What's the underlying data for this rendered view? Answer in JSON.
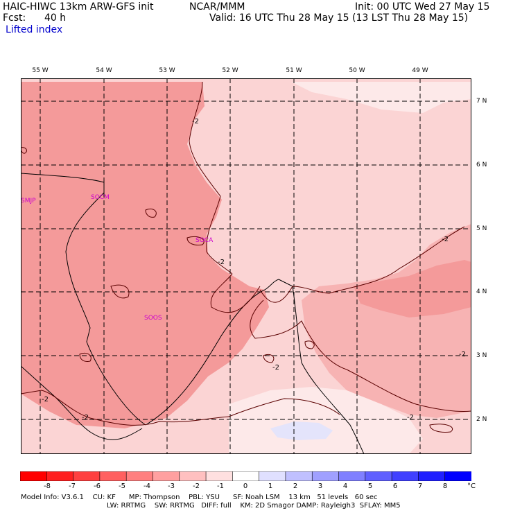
{
  "header": {
    "title": "HAIC-HIWC 13km ARW-GFS init",
    "center": "NCAR/MMM",
    "init": "Init: 00 UTC Wed 27 May 15",
    "fcst_label": "Fcst:",
    "fcst_value": "40 h",
    "valid": "Valid: 16 UTC Thu 28 May 15 (13 LST Thu 28 May 15)",
    "field": "Lifted index"
  },
  "map": {
    "longitudes": [
      "55 W",
      "54 W",
      "53 W",
      "52 W",
      "51 W",
      "50 W",
      "49 W"
    ],
    "latitudes": [
      "7 N",
      "6 N",
      "5 N",
      "4 N",
      "3 N",
      "2 N"
    ],
    "stations": [
      "SMJP",
      "SOCM",
      "SOCA",
      "SOOS"
    ],
    "contour_label": "-2",
    "fill_colors": {
      "deep": "#f49a9a",
      "mid": "#f7b3b3",
      "light": "#fbd4d4",
      "pale": "#fde9e9",
      "blue": "#e4e4fb"
    }
  },
  "colorbar": {
    "labels": [
      "-8",
      "-7",
      "-6",
      "-5",
      "-4",
      "-3",
      "-2",
      "-1",
      "0",
      "1",
      "2",
      "3",
      "4",
      "5",
      "6",
      "7",
      "8"
    ],
    "unit": "°C",
    "colors": [
      "#ff0000",
      "#ff2020",
      "#ff4040",
      "#ff6060",
      "#ff8080",
      "#ffa0a0",
      "#ffc0c0",
      "#ffe0e0",
      "#ffffff",
      "#e0e0ff",
      "#c0c0ff",
      "#a0a0ff",
      "#8080ff",
      "#6060ff",
      "#4040ff",
      "#2020ff",
      "#0000ff"
    ]
  },
  "footer": {
    "line1": "Model Info: V3.6.1    CU: KF      MP: Thompson    PBL: YSU      SF: Noah LSM    13 km   51 levels   60 sec",
    "line2": "LW: RRTMG    SW: RRTMG   DIFF: full    KM: 2D Smagor DAMP: Rayleigh3  SFLAY: MM5"
  }
}
